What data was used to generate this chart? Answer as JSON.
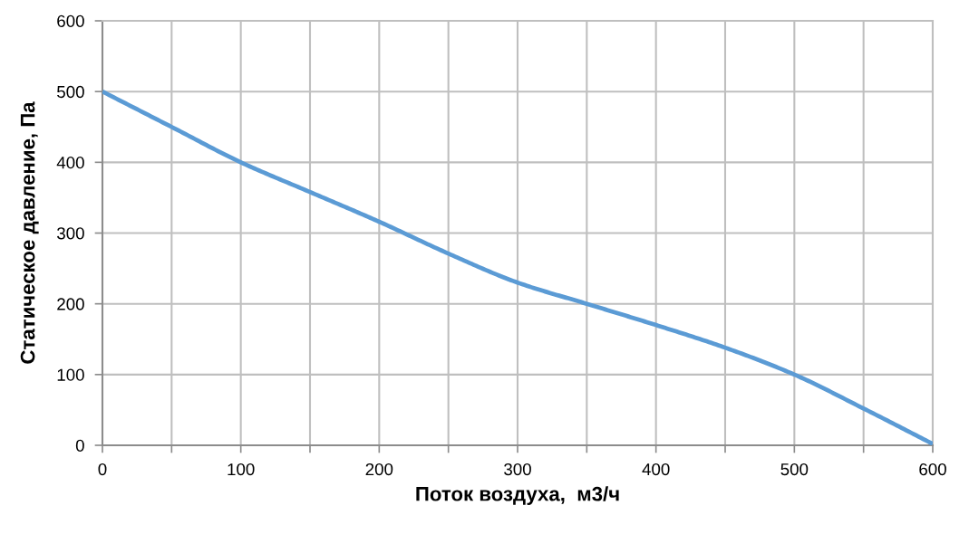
{
  "chart_data": {
    "type": "line",
    "xlabel": "Поток воздуха,  м3/ч",
    "ylabel": "Статическое давление, Па",
    "x": [
      0,
      50,
      100,
      150,
      200,
      250,
      300,
      350,
      400,
      450,
      500,
      550,
      600
    ],
    "series": [
      {
        "color": "#5b9bd5",
        "values": [
          500,
          450,
          400,
          358,
          316,
          271,
          230,
          200,
          170,
          138,
          100,
          52,
          2
        ]
      }
    ],
    "xlim": [
      0,
      600
    ],
    "ylim": [
      0,
      600
    ],
    "xticks": [
      0,
      {
        "value": 50,
        "label": null
      },
      100,
      {
        "value": 150,
        "label": null
      },
      200,
      {
        "value": 250,
        "label": null
      },
      300,
      {
        "value": 350,
        "label": null
      },
      400,
      {
        "value": 450,
        "label": null
      },
      500,
      {
        "value": 550,
        "label": null
      },
      600
    ],
    "yticks": [
      0,
      100,
      200,
      300,
      400,
      500,
      600
    ],
    "grid": true,
    "legend": false,
    "marker": "none",
    "line_style": "solid"
  }
}
